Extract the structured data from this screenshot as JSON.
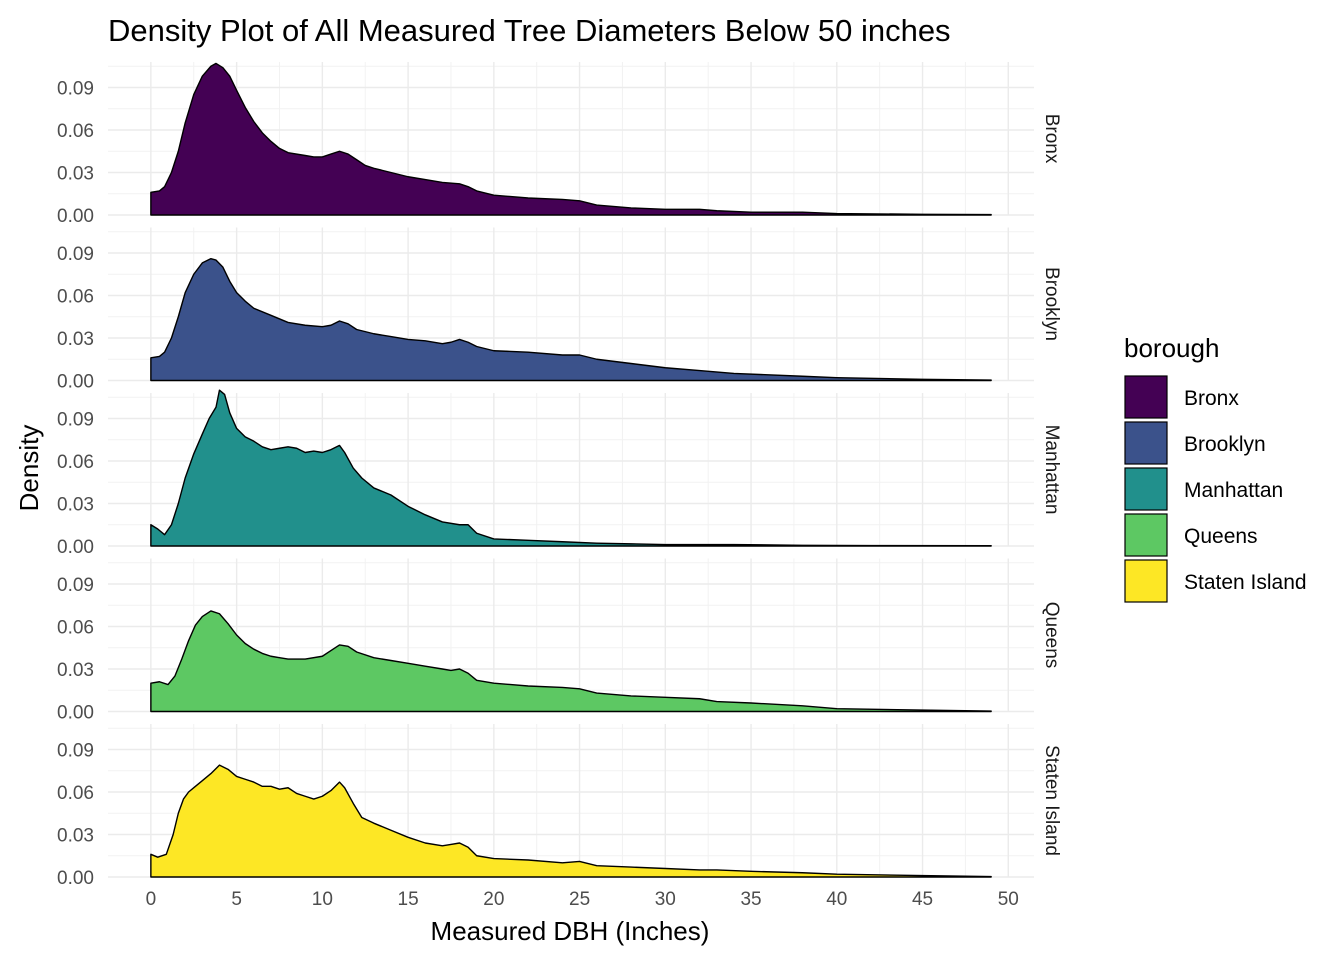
{
  "chart_data": {
    "type": "area",
    "title": "Density Plot of All Measured Tree Diameters Below 50 inches",
    "xlabel": "Measured DBH (Inches)",
    "ylabel": "Density",
    "xlim": [
      -2.5,
      51.5
    ],
    "ylim": [
      0,
      0.108
    ],
    "x_ticks": [
      0,
      5,
      10,
      15,
      20,
      25,
      30,
      35,
      40,
      45,
      50
    ],
    "y_ticks": [
      0.0,
      0.03,
      0.06,
      0.09
    ],
    "y_tick_labels": [
      "0.00",
      "0.03",
      "0.06",
      "0.09"
    ],
    "grid": true,
    "facet": "rows",
    "legend": {
      "title": "borough",
      "position": "right",
      "entries": [
        "Bronx",
        "Brooklyn",
        "Manhattan",
        "Queens",
        "Staten Island"
      ]
    },
    "series": [
      {
        "name": "Bronx",
        "color": "#440154",
        "x": [
          0,
          0.5,
          0.8,
          1.2,
          1.6,
          2.0,
          2.5,
          3.0,
          3.5,
          3.8,
          4.2,
          4.6,
          5.0,
          5.5,
          6.0,
          6.5,
          7.0,
          7.5,
          8.0,
          9.0,
          9.5,
          10.0,
          10.5,
          11.0,
          11.5,
          12.0,
          12.5,
          13.0,
          14.0,
          15.0,
          16.0,
          17.0,
          18.0,
          18.5,
          19.0,
          20.0,
          22.0,
          24.0,
          25.0,
          26.0,
          28.0,
          30.0,
          32.0,
          33.0,
          35.0,
          38.0,
          40.0,
          45.0,
          49.0
        ],
        "y": [
          0.016,
          0.017,
          0.02,
          0.03,
          0.045,
          0.065,
          0.085,
          0.098,
          0.105,
          0.107,
          0.104,
          0.098,
          0.088,
          0.076,
          0.066,
          0.058,
          0.052,
          0.047,
          0.044,
          0.042,
          0.041,
          0.041,
          0.043,
          0.045,
          0.043,
          0.039,
          0.035,
          0.033,
          0.03,
          0.027,
          0.025,
          0.023,
          0.022,
          0.02,
          0.017,
          0.014,
          0.012,
          0.011,
          0.01,
          0.007,
          0.005,
          0.004,
          0.004,
          0.003,
          0.002,
          0.002,
          0.001,
          0.0005,
          0.0003
        ]
      },
      {
        "name": "Brooklyn",
        "color": "#3b528b",
        "x": [
          0,
          0.5,
          0.8,
          1.2,
          1.6,
          2.0,
          2.5,
          3.0,
          3.5,
          3.8,
          4.2,
          4.6,
          5.0,
          5.5,
          6.0,
          7.0,
          8.0,
          9.0,
          10.0,
          10.5,
          11.0,
          11.5,
          12.0,
          13.0,
          14.0,
          15.0,
          16.0,
          17.0,
          17.5,
          18.0,
          18.5,
          19.0,
          20.0,
          22.0,
          24.0,
          25.0,
          26.0,
          28.0,
          30.0,
          32.0,
          34.0,
          36.0,
          38.0,
          40.0,
          45.0,
          49.0
        ],
        "y": [
          0.016,
          0.017,
          0.02,
          0.03,
          0.045,
          0.062,
          0.075,
          0.083,
          0.086,
          0.085,
          0.08,
          0.07,
          0.062,
          0.056,
          0.051,
          0.046,
          0.041,
          0.039,
          0.038,
          0.039,
          0.042,
          0.04,
          0.036,
          0.033,
          0.031,
          0.029,
          0.028,
          0.026,
          0.027,
          0.029,
          0.027,
          0.024,
          0.021,
          0.02,
          0.018,
          0.018,
          0.015,
          0.012,
          0.009,
          0.007,
          0.005,
          0.004,
          0.003,
          0.002,
          0.0008,
          0.0003
        ]
      },
      {
        "name": "Manhattan",
        "color": "#21908c",
        "x": [
          0,
          0.4,
          0.8,
          1.2,
          1.6,
          2.0,
          2.5,
          3.0,
          3.4,
          3.8,
          4.0,
          4.3,
          4.6,
          5.0,
          5.5,
          6.0,
          6.5,
          7.0,
          7.5,
          8.0,
          8.5,
          9.0,
          9.5,
          10.0,
          10.5,
          11.0,
          11.3,
          11.8,
          12.3,
          13.0,
          14.0,
          15.0,
          16.0,
          17.0,
          18.0,
          18.5,
          19.0,
          20.0,
          22.0,
          24.0,
          26.0,
          28.0,
          30.0,
          34.0,
          38.0,
          42.0,
          49.0
        ],
        "y": [
          0.015,
          0.012,
          0.008,
          0.015,
          0.03,
          0.048,
          0.065,
          0.079,
          0.09,
          0.098,
          0.11,
          0.107,
          0.094,
          0.083,
          0.077,
          0.074,
          0.07,
          0.068,
          0.069,
          0.07,
          0.069,
          0.066,
          0.067,
          0.066,
          0.068,
          0.071,
          0.066,
          0.055,
          0.048,
          0.041,
          0.036,
          0.028,
          0.022,
          0.017,
          0.015,
          0.015,
          0.009,
          0.005,
          0.004,
          0.003,
          0.002,
          0.0015,
          0.001,
          0.001,
          0.0005,
          0.0003,
          0.0002
        ]
      },
      {
        "name": "Queens",
        "color": "#5dc863",
        "x": [
          0,
          0.5,
          1.0,
          1.4,
          1.8,
          2.2,
          2.6,
          3.0,
          3.5,
          4.0,
          4.5,
          5.0,
          5.5,
          6.0,
          6.5,
          7.0,
          7.5,
          8.0,
          9.0,
          10.0,
          10.5,
          11.0,
          11.5,
          12.0,
          13.0,
          14.0,
          15.0,
          16.0,
          17.0,
          17.5,
          18.0,
          18.5,
          19.0,
          20.0,
          22.0,
          24.0,
          25.0,
          26.0,
          28.0,
          30.0,
          32.0,
          33.0,
          35.0,
          38.0,
          40.0,
          45.0,
          49.0
        ],
        "y": [
          0.02,
          0.021,
          0.019,
          0.025,
          0.037,
          0.05,
          0.061,
          0.067,
          0.071,
          0.069,
          0.062,
          0.054,
          0.048,
          0.044,
          0.041,
          0.039,
          0.038,
          0.037,
          0.037,
          0.039,
          0.043,
          0.047,
          0.046,
          0.042,
          0.038,
          0.036,
          0.034,
          0.032,
          0.03,
          0.029,
          0.03,
          0.027,
          0.022,
          0.02,
          0.018,
          0.017,
          0.016,
          0.013,
          0.011,
          0.01,
          0.009,
          0.007,
          0.006,
          0.004,
          0.002,
          0.001,
          0.0003
        ]
      },
      {
        "name": "Staten Island",
        "color": "#fde725",
        "x": [
          0,
          0.4,
          0.9,
          1.3,
          1.6,
          1.9,
          2.2,
          2.6,
          3.0,
          3.5,
          4.0,
          4.5,
          5.0,
          5.5,
          6.0,
          6.5,
          7.0,
          7.5,
          8.0,
          8.5,
          9.0,
          9.5,
          10.0,
          10.5,
          11.0,
          11.3,
          11.8,
          12.3,
          13.0,
          14.0,
          15.0,
          16.0,
          17.0,
          17.5,
          18.0,
          18.5,
          19.0,
          20.0,
          22.0,
          24.0,
          25.0,
          26.0,
          28.0,
          30.0,
          32.0,
          33.0,
          35.0,
          38.0,
          40.0,
          45.0,
          49.0
        ],
        "y": [
          0.016,
          0.014,
          0.016,
          0.03,
          0.045,
          0.055,
          0.06,
          0.064,
          0.068,
          0.073,
          0.079,
          0.076,
          0.071,
          0.069,
          0.067,
          0.064,
          0.064,
          0.062,
          0.063,
          0.059,
          0.057,
          0.055,
          0.057,
          0.061,
          0.067,
          0.063,
          0.052,
          0.042,
          0.038,
          0.033,
          0.028,
          0.024,
          0.022,
          0.023,
          0.024,
          0.021,
          0.015,
          0.013,
          0.012,
          0.01,
          0.011,
          0.008,
          0.007,
          0.006,
          0.005,
          0.005,
          0.004,
          0.003,
          0.002,
          0.001,
          0.0003
        ]
      }
    ]
  }
}
